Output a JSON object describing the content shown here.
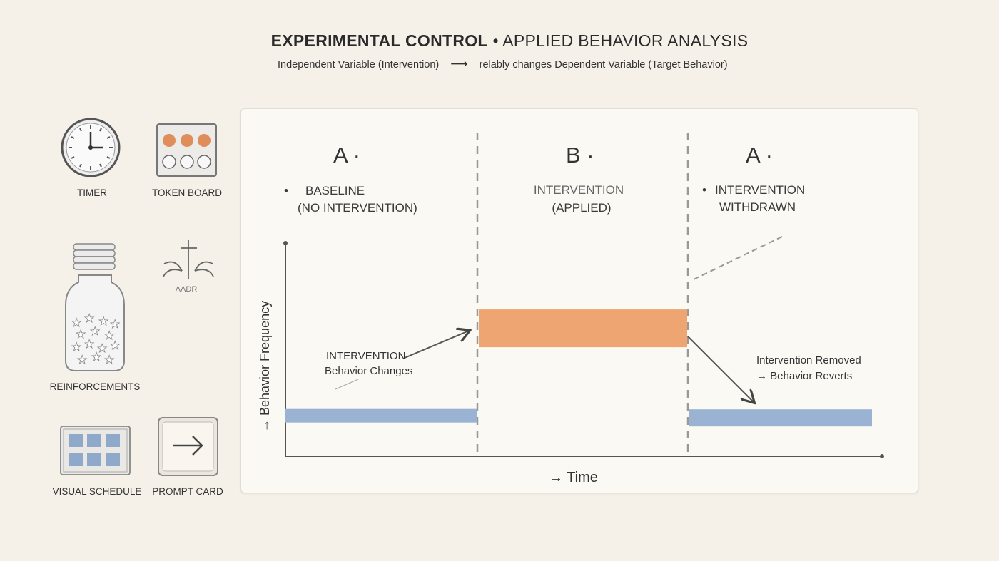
{
  "header": {
    "title_bold": "EXPERIMENTAL CONTROL",
    "title_rest": " • APPLIED BEHAVIOR ANALYSIS",
    "subtitle_left": "Independent Variable (Intervention)",
    "subtitle_arrow": "⟶",
    "subtitle_right": "relably changes Dependent Variable (Target Behavior)"
  },
  "tools": {
    "timer": "TIMER",
    "token_board": "TOKEN BOARD",
    "reinforcements": "REINFORCEMENTS",
    "icon_caption": "ΛΛDR",
    "visual_schedule": "VISUAL SCHEDULE",
    "prompt_card": "PROMPT CARD"
  },
  "phases": [
    {
      "letter": "A ·",
      "bullet": "•",
      "line1": "BASELINE",
      "line2": "(NO INTERVENTION)"
    },
    {
      "letter": "B ·",
      "bullet": "",
      "line1": "INTERVENTION",
      "line2": "(APPLIED)"
    },
    {
      "letter": "A ·",
      "bullet": "•",
      "line1": "INTERVENTION",
      "line2": "WITHDRAWN"
    }
  ],
  "annotations": {
    "change_line1": "INTERVENTION",
    "change_line2": "Behavior Changes",
    "revert_line1": "Intervention Removed",
    "revert_line2": "→ Behavior Reverts"
  },
  "axes": {
    "y_label": "→ Behavior Frequency",
    "x_label": "→ Time"
  },
  "colors": {
    "baseline": "#9bb3d3",
    "intervention": "#eea571",
    "token_filled": "#e08d5c"
  },
  "levels": {
    "phase_a1": 0.19,
    "phase_b": 0.6,
    "phase_a2": 0.18
  }
}
